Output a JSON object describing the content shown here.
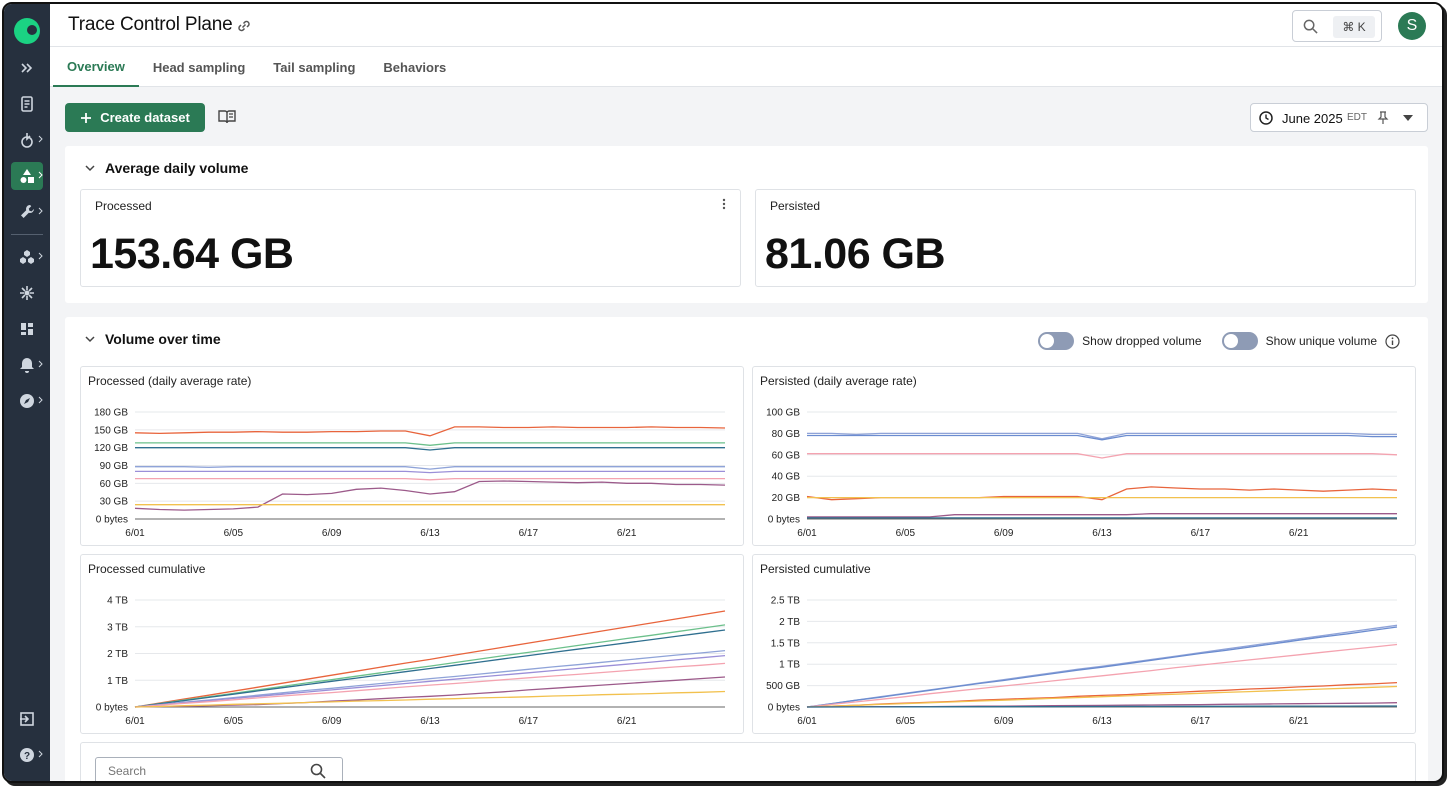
{
  "header": {
    "title": "Trace Control Plane",
    "search_shortcut": "⌘ K",
    "avatar_initial": "S"
  },
  "tabs": [
    {
      "label": "Overview",
      "active": true
    },
    {
      "label": "Head sampling",
      "active": false
    },
    {
      "label": "Tail sampling",
      "active": false
    },
    {
      "label": "Behaviors",
      "active": false
    }
  ],
  "toolbar": {
    "create_label": "Create dataset",
    "date": "June 2025",
    "timezone": "EDT"
  },
  "avg_section": {
    "title": "Average daily volume",
    "processed_label": "Processed",
    "processed_value": "153.64 GB",
    "persisted_label": "Persisted",
    "persisted_value": "81.06 GB"
  },
  "time_section": {
    "title": "Volume over time",
    "toggle_dropped": "Show dropped volume",
    "toggle_unique": "Show unique volume"
  },
  "table": {
    "search_placeholder": "Search"
  },
  "colors": {
    "accent": "#2b7a55",
    "sidebar": "#26303e",
    "logo": "#1bd283"
  },
  "chart_data": [
    {
      "type": "line",
      "title": "Processed (daily average rate)",
      "x": [
        "6/01",
        "6/02",
        "6/03",
        "6/04",
        "6/05",
        "6/06",
        "6/07",
        "6/08",
        "6/09",
        "6/10",
        "6/11",
        "6/12",
        "6/13",
        "6/14",
        "6/15",
        "6/16",
        "6/17",
        "6/18",
        "6/19",
        "6/20",
        "6/21",
        "6/22",
        "6/23",
        "6/24",
        "6/25"
      ],
      "xticks": [
        "6/01",
        "6/05",
        "6/09",
        "6/13",
        "6/17",
        "6/21"
      ],
      "yticks": [
        "0 bytes",
        "30 GB",
        "60 GB",
        "90 GB",
        "120 GB",
        "150 GB",
        "180 GB"
      ],
      "ylim": [
        0,
        180
      ],
      "series": [
        {
          "color": "#e8643c",
          "values": [
            145,
            144,
            145,
            146,
            146,
            147,
            146,
            146,
            147,
            147,
            148,
            148,
            140,
            155,
            155,
            154,
            154,
            155,
            154,
            154,
            154,
            155,
            154,
            154,
            153
          ]
        },
        {
          "color": "#6cc08b",
          "values": [
            128,
            128,
            128,
            128,
            128,
            128,
            128,
            128,
            128,
            128,
            128,
            128,
            124,
            128,
            128,
            128,
            128,
            128,
            128,
            128,
            128,
            128,
            128,
            128,
            128
          ]
        },
        {
          "color": "#2f6f8f",
          "values": [
            120,
            120,
            120,
            120,
            120,
            120,
            120,
            120,
            120,
            120,
            120,
            120,
            116,
            120,
            120,
            120,
            120,
            120,
            120,
            120,
            120,
            120,
            120,
            120,
            120
          ]
        },
        {
          "color": "#8fa3d8",
          "values": [
            88,
            88,
            88,
            87,
            88,
            88,
            88,
            88,
            88,
            88,
            88,
            88,
            84,
            88,
            88,
            88,
            88,
            88,
            88,
            88,
            88,
            88,
            88,
            88,
            88
          ]
        },
        {
          "color": "#9b8fd8",
          "values": [
            80,
            80,
            80,
            80,
            80,
            80,
            80,
            80,
            80,
            80,
            80,
            80,
            78,
            80,
            80,
            80,
            80,
            80,
            80,
            80,
            80,
            80,
            80,
            80,
            80
          ]
        },
        {
          "color": "#f4a3b0",
          "values": [
            68,
            68,
            68,
            68,
            68,
            68,
            68,
            68,
            68,
            68,
            68,
            68,
            66,
            68,
            68,
            68,
            68,
            68,
            68,
            68,
            68,
            68,
            68,
            68,
            68
          ]
        },
        {
          "color": "#9c5a8a",
          "values": [
            18,
            16,
            15,
            16,
            17,
            20,
            42,
            41,
            43,
            50,
            52,
            48,
            42,
            46,
            63,
            64,
            63,
            62,
            61,
            62,
            60,
            60,
            58,
            58,
            57
          ]
        },
        {
          "color": "#f2c14e",
          "values": [
            24,
            24,
            24,
            24,
            24,
            24,
            24,
            24,
            24,
            24,
            24,
            24,
            24,
            24,
            24,
            24,
            24,
            24,
            24,
            24,
            24,
            24,
            24,
            24,
            24
          ]
        }
      ]
    },
    {
      "type": "line",
      "title": "Persisted (daily average rate)",
      "x": [
        "6/01",
        "6/02",
        "6/03",
        "6/04",
        "6/05",
        "6/06",
        "6/07",
        "6/08",
        "6/09",
        "6/10",
        "6/11",
        "6/12",
        "6/13",
        "6/14",
        "6/15",
        "6/16",
        "6/17",
        "6/18",
        "6/19",
        "6/20",
        "6/21",
        "6/22",
        "6/23",
        "6/24",
        "6/25"
      ],
      "xticks": [
        "6/01",
        "6/05",
        "6/09",
        "6/13",
        "6/17",
        "6/21"
      ],
      "yticks": [
        "0 bytes",
        "20 GB",
        "40 GB",
        "60 GB",
        "80 GB",
        "100 GB"
      ],
      "ylim": [
        0,
        100
      ],
      "series": [
        {
          "color": "#8fa3d8",
          "values": [
            80,
            80,
            79,
            80,
            80,
            80,
            80,
            80,
            80,
            80,
            80,
            80,
            75,
            80,
            80,
            80,
            80,
            80,
            80,
            80,
            80,
            80,
            80,
            79,
            79
          ]
        },
        {
          "color": "#6b8ccf",
          "values": [
            78,
            78,
            78,
            78,
            78,
            78,
            78,
            78,
            78,
            78,
            78,
            78,
            74,
            78,
            78,
            78,
            78,
            78,
            78,
            78,
            78,
            78,
            78,
            77,
            77
          ]
        },
        {
          "color": "#f4a3b0",
          "values": [
            61,
            61,
            61,
            61,
            61,
            61,
            61,
            61,
            61,
            61,
            61,
            61,
            57,
            61,
            61,
            61,
            61,
            61,
            61,
            61,
            61,
            61,
            61,
            61,
            60
          ]
        },
        {
          "color": "#e8643c",
          "values": [
            21,
            18,
            19,
            20,
            20,
            20,
            20,
            20,
            21,
            21,
            21,
            21,
            18,
            28,
            30,
            29,
            28,
            28,
            27,
            28,
            27,
            26,
            27,
            28,
            27
          ]
        },
        {
          "color": "#f2c14e",
          "values": [
            20,
            20,
            20,
            20,
            20,
            20,
            20,
            20,
            20,
            20,
            20,
            20,
            20,
            20,
            20,
            20,
            20,
            20,
            20,
            20,
            20,
            20,
            20,
            20,
            20
          ]
        },
        {
          "color": "#9c5a8a",
          "values": [
            2,
            2,
            2,
            2,
            2,
            2,
            4,
            4,
            4,
            4,
            4,
            4,
            4,
            4,
            5,
            5,
            5,
            5,
            5,
            5,
            5,
            5,
            5,
            5,
            5
          ]
        },
        {
          "color": "#2f6f8f",
          "values": [
            1,
            1,
            1,
            1,
            1,
            1,
            1,
            1,
            1,
            1,
            1,
            1,
            1,
            1,
            1,
            1,
            1,
            1,
            1,
            1,
            1,
            1,
            1,
            1,
            1
          ]
        }
      ]
    },
    {
      "type": "line",
      "title": "Processed cumulative",
      "x": [
        "6/01",
        "6/02",
        "6/03",
        "6/04",
        "6/05",
        "6/06",
        "6/07",
        "6/08",
        "6/09",
        "6/10",
        "6/11",
        "6/12",
        "6/13",
        "6/14",
        "6/15",
        "6/16",
        "6/17",
        "6/18",
        "6/19",
        "6/20",
        "6/21",
        "6/22",
        "6/23",
        "6/24",
        "6/25"
      ],
      "xticks": [
        "6/01",
        "6/05",
        "6/09",
        "6/13",
        "6/17",
        "6/21"
      ],
      "yticks": [
        "0 bytes",
        "1 TB",
        "2 TB",
        "3 TB",
        "4 TB"
      ],
      "ylim": [
        0,
        4
      ],
      "series": [
        {
          "color": "#e8643c",
          "values": [
            0,
            0.15,
            0.3,
            0.44,
            0.59,
            0.74,
            0.89,
            1.04,
            1.19,
            1.34,
            1.49,
            1.64,
            1.78,
            1.94,
            2.09,
            2.24,
            2.39,
            2.54,
            2.69,
            2.84,
            2.99,
            3.14,
            3.29,
            3.44,
            3.59
          ]
        },
        {
          "color": "#6cc08b",
          "values": [
            0,
            0.13,
            0.26,
            0.38,
            0.51,
            0.64,
            0.77,
            0.9,
            1.02,
            1.15,
            1.28,
            1.41,
            1.53,
            1.66,
            1.79,
            1.92,
            2.04,
            2.17,
            2.3,
            2.43,
            2.56,
            2.68,
            2.81,
            2.94,
            3.07
          ]
        },
        {
          "color": "#2f6f8f",
          "values": [
            0,
            0.12,
            0.24,
            0.36,
            0.48,
            0.6,
            0.72,
            0.84,
            0.96,
            1.08,
            1.2,
            1.32,
            1.44,
            1.56,
            1.68,
            1.8,
            1.92,
            2.04,
            2.16,
            2.28,
            2.4,
            2.52,
            2.64,
            2.76,
            2.88
          ]
        },
        {
          "color": "#8fa3d8",
          "values": [
            0,
            0.09,
            0.18,
            0.26,
            0.35,
            0.44,
            0.53,
            0.62,
            0.7,
            0.79,
            0.88,
            0.97,
            1.06,
            1.14,
            1.23,
            1.32,
            1.41,
            1.5,
            1.58,
            1.67,
            1.76,
            1.85,
            1.94,
            2.02,
            2.11
          ]
        },
        {
          "color": "#9b8fd8",
          "values": [
            0,
            0.08,
            0.16,
            0.24,
            0.32,
            0.4,
            0.48,
            0.56,
            0.64,
            0.72,
            0.8,
            0.88,
            0.96,
            1.04,
            1.12,
            1.2,
            1.28,
            1.36,
            1.44,
            1.52,
            1.6,
            1.68,
            1.76,
            1.84,
            1.92
          ]
        },
        {
          "color": "#f4a3b0",
          "values": [
            0,
            0.07,
            0.14,
            0.2,
            0.27,
            0.34,
            0.41,
            0.48,
            0.54,
            0.61,
            0.68,
            0.75,
            0.82,
            0.88,
            0.95,
            1.02,
            1.09,
            1.16,
            1.22,
            1.29,
            1.36,
            1.43,
            1.5,
            1.56,
            1.63
          ]
        },
        {
          "color": "#9c5a8a",
          "values": [
            0,
            0.02,
            0.03,
            0.05,
            0.07,
            0.09,
            0.13,
            0.17,
            0.22,
            0.26,
            0.31,
            0.36,
            0.4,
            0.45,
            0.51,
            0.57,
            0.64,
            0.7,
            0.76,
            0.82,
            0.88,
            0.94,
            1.0,
            1.06,
            1.12
          ]
        },
        {
          "color": "#f2c14e",
          "values": [
            0,
            0.02,
            0.05,
            0.07,
            0.1,
            0.12,
            0.14,
            0.17,
            0.19,
            0.22,
            0.24,
            0.26,
            0.29,
            0.31,
            0.34,
            0.36,
            0.38,
            0.41,
            0.43,
            0.46,
            0.48,
            0.5,
            0.53,
            0.55,
            0.58
          ]
        }
      ]
    },
    {
      "type": "line",
      "title": "Persisted cumulative",
      "x": [
        "6/01",
        "6/02",
        "6/03",
        "6/04",
        "6/05",
        "6/06",
        "6/07",
        "6/08",
        "6/09",
        "6/10",
        "6/11",
        "6/12",
        "6/13",
        "6/14",
        "6/15",
        "6/16",
        "6/17",
        "6/18",
        "6/19",
        "6/20",
        "6/21",
        "6/22",
        "6/23",
        "6/24",
        "6/25"
      ],
      "xticks": [
        "6/01",
        "6/05",
        "6/09",
        "6/13",
        "6/17",
        "6/21"
      ],
      "yticks": [
        "0 bytes",
        "500 GB",
        "1 TB",
        "1.5 TB",
        "2 TB",
        "2.5 TB"
      ],
      "ylim": [
        0,
        2.5
      ],
      "series": [
        {
          "color": "#8fa3d8",
          "values": [
            0,
            0.08,
            0.16,
            0.24,
            0.32,
            0.4,
            0.48,
            0.56,
            0.64,
            0.72,
            0.8,
            0.88,
            0.95,
            1.03,
            1.11,
            1.19,
            1.27,
            1.35,
            1.43,
            1.51,
            1.59,
            1.67,
            1.75,
            1.83,
            1.91
          ]
        },
        {
          "color": "#6b8ccf",
          "values": [
            0,
            0.08,
            0.16,
            0.23,
            0.31,
            0.39,
            0.47,
            0.55,
            0.62,
            0.7,
            0.78,
            0.86,
            0.93,
            1.01,
            1.09,
            1.17,
            1.25,
            1.32,
            1.4,
            1.48,
            1.56,
            1.64,
            1.71,
            1.79,
            1.87
          ]
        },
        {
          "color": "#f4a3b0",
          "values": [
            0,
            0.06,
            0.12,
            0.18,
            0.24,
            0.31,
            0.37,
            0.43,
            0.49,
            0.55,
            0.61,
            0.67,
            0.73,
            0.79,
            0.85,
            0.92,
            0.98,
            1.04,
            1.1,
            1.16,
            1.22,
            1.28,
            1.34,
            1.4,
            1.46
          ]
        },
        {
          "color": "#e8643c",
          "values": [
            0,
            0.02,
            0.04,
            0.07,
            0.09,
            0.11,
            0.13,
            0.16,
            0.18,
            0.2,
            0.22,
            0.25,
            0.27,
            0.29,
            0.32,
            0.34,
            0.37,
            0.39,
            0.42,
            0.44,
            0.47,
            0.49,
            0.52,
            0.54,
            0.57
          ]
        },
        {
          "color": "#f2c14e",
          "values": [
            0,
            0.02,
            0.04,
            0.06,
            0.08,
            0.1,
            0.12,
            0.14,
            0.16,
            0.18,
            0.2,
            0.22,
            0.24,
            0.26,
            0.28,
            0.3,
            0.32,
            0.34,
            0.36,
            0.38,
            0.4,
            0.42,
            0.44,
            0.46,
            0.48
          ]
        },
        {
          "color": "#9c5a8a",
          "values": [
            0,
            0.002,
            0.004,
            0.006,
            0.008,
            0.01,
            0.014,
            0.018,
            0.022,
            0.026,
            0.03,
            0.034,
            0.038,
            0.042,
            0.047,
            0.052,
            0.057,
            0.062,
            0.067,
            0.072,
            0.077,
            0.082,
            0.087,
            0.092,
            0.1
          ]
        },
        {
          "color": "#2f6f8f",
          "values": [
            0,
            0.001,
            0.002,
            0.003,
            0.004,
            0.005,
            0.006,
            0.007,
            0.008,
            0.009,
            0.01,
            0.011,
            0.012,
            0.013,
            0.014,
            0.015,
            0.016,
            0.017,
            0.018,
            0.019,
            0.02,
            0.021,
            0.022,
            0.023,
            0.024
          ]
        }
      ]
    }
  ]
}
